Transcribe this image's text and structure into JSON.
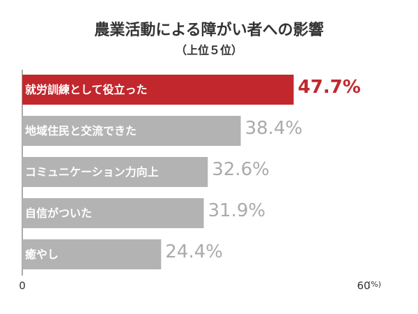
{
  "chart_data": {
    "type": "hbar",
    "title": "農業活動による障がい者への影響",
    "subtitle": "（上位５位）",
    "categories": [
      "就労訓練として役立った",
      "地域住民と交流できた",
      "コミュニケーション力向上",
      "自信がついた",
      "癒やし"
    ],
    "values": [
      47.7,
      38.4,
      32.6,
      31.9,
      24.4
    ],
    "value_labels": [
      "47.7%",
      "38.4%",
      "32.6%",
      "31.9%",
      "24.4%"
    ],
    "colors": [
      "#c1272d",
      "#b3b3b3",
      "#b3b3b3",
      "#b3b3b3",
      "#b3b3b3"
    ],
    "xlim": [
      0,
      60
    ],
    "xticks": [
      0,
      60
    ],
    "x_unit": "(%)"
  }
}
